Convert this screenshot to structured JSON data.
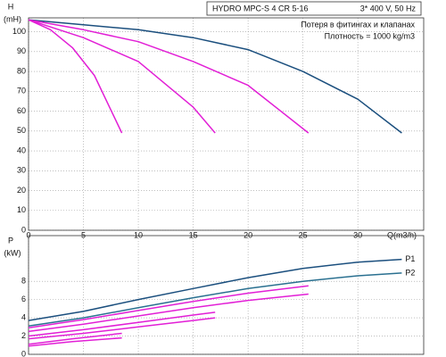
{
  "chart_data": [
    {
      "type": "line",
      "title": "HYDRO MPC-S 4 CR 5-16",
      "subtitle": "3* 400 V, 50 Hz",
      "annotations": [
        "Потеря в фитингах и клапанах",
        "Плотность = 1000 kg/m3"
      ],
      "ylabel": "H",
      "yunit": "(mH)",
      "xlabel": "Q(m3/h)",
      "xlim": [
        0,
        36
      ],
      "xticks": [
        0,
        5,
        10,
        15,
        20,
        25,
        30
      ],
      "ylim": [
        0,
        107
      ],
      "yticks": [
        0,
        10,
        20,
        30,
        40,
        50,
        60,
        70,
        80,
        90,
        100
      ],
      "grid": true,
      "series": [
        {
          "color": "#1b4f7e",
          "x": [
            0,
            5,
            10,
            15,
            20,
            25,
            30,
            34
          ],
          "values": [
            106,
            103.5,
            101,
            97,
            91,
            80,
            66,
            49
          ]
        },
        {
          "color": "#e21fd6",
          "x": [
            0,
            5,
            10,
            15,
            20,
            25.5
          ],
          "values": [
            106,
            101,
            95,
            85,
            73,
            49
          ]
        },
        {
          "color": "#e21fd6",
          "x": [
            0,
            5,
            10,
            15,
            17
          ],
          "values": [
            106,
            97,
            85,
            62,
            49
          ]
        },
        {
          "color": "#e21fd6",
          "x": [
            0,
            2,
            4,
            6,
            8.5
          ],
          "values": [
            106,
            101,
            92,
            78,
            49
          ]
        }
      ]
    },
    {
      "type": "line",
      "ylabel": "P",
      "yunit": "(kW)",
      "xlim": [
        0,
        36
      ],
      "xticks": [
        0,
        5,
        10,
        15,
        20,
        25,
        30
      ],
      "ylim": [
        0,
        13
      ],
      "yticks": [
        0,
        2,
        4,
        6,
        8
      ],
      "grid": true,
      "series": [
        {
          "name": "P1",
          "color": "#1b4f7e",
          "x": [
            0,
            5,
            10,
            15,
            20,
            25,
            30,
            34
          ],
          "values": [
            3.7,
            4.7,
            6.0,
            7.2,
            8.4,
            9.4,
            10.1,
            10.4
          ]
        },
        {
          "name": "P2",
          "color": "#2a7090",
          "x": [
            0,
            5,
            10,
            15,
            20,
            25,
            30,
            34
          ],
          "values": [
            3.1,
            4.0,
            5.1,
            6.2,
            7.2,
            8.0,
            8.6,
            8.9
          ]
        },
        {
          "color": "#e21fd6",
          "x": [
            0,
            5,
            10,
            15,
            20,
            25.5
          ],
          "values": [
            2.9,
            3.8,
            4.8,
            5.8,
            6.7,
            7.5
          ]
        },
        {
          "color": "#e21fd6",
          "x": [
            0,
            5,
            10,
            15,
            20,
            25.5
          ],
          "values": [
            2.5,
            3.3,
            4.2,
            5.1,
            5.9,
            6.6
          ]
        },
        {
          "color": "#e21fd6",
          "x": [
            0,
            5,
            10,
            15,
            17
          ],
          "values": [
            2.0,
            2.7,
            3.5,
            4.3,
            4.6
          ]
        },
        {
          "color": "#e21fd6",
          "x": [
            0,
            5,
            10,
            15,
            17
          ],
          "values": [
            1.7,
            2.3,
            3.0,
            3.7,
            4.0
          ]
        },
        {
          "color": "#e21fd6",
          "x": [
            0,
            4,
            8.5
          ],
          "values": [
            1.1,
            1.7,
            2.3
          ]
        },
        {
          "color": "#e21fd6",
          "x": [
            0,
            4,
            8.5
          ],
          "values": [
            0.9,
            1.4,
            1.8
          ]
        }
      ]
    }
  ]
}
